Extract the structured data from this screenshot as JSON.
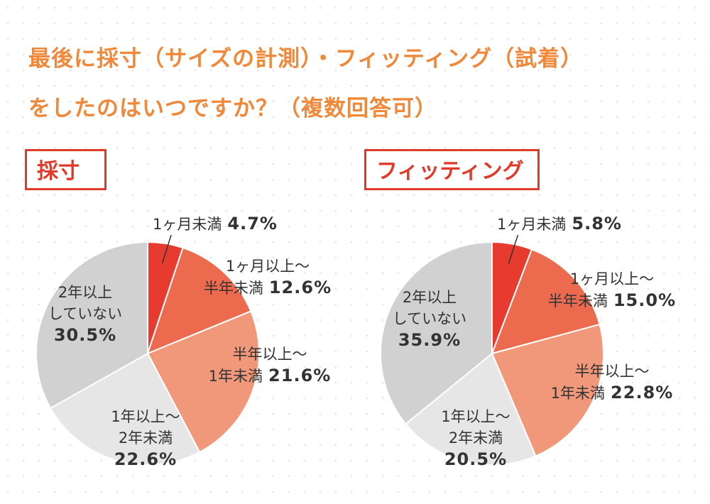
{
  "title": "最後に採寸（サイズの計測）・フィッティング（試着）\nをしたのはいつですか？（複数回答可）",
  "chart_data": [
    {
      "type": "pie",
      "title": "採寸",
      "categories": [
        "1ヶ月未満",
        "1ヶ月以上〜\n半年未満",
        "半年以上〜\n1年未満",
        "1年以上〜\n2年未満",
        "2年以上\nしていない"
      ],
      "values": [
        4.7,
        12.6,
        21.6,
        22.6,
        30.5
      ],
      "value_labels": [
        "4.7%",
        "12.6%",
        "21.6%",
        "22.6%",
        "30.5%"
      ],
      "colors": [
        "#e63b2e",
        "#ec6b4f",
        "#f1987a",
        "#e6e6e6",
        "#d1d1d1"
      ]
    },
    {
      "type": "pie",
      "title": "フィッティング",
      "categories": [
        "1ヶ月未満",
        "1ヶ月以上〜\n半年未満",
        "半年以上〜\n1年未満",
        "1年以上〜\n2年未満",
        "2年以上\nしていない"
      ],
      "values": [
        5.8,
        15.0,
        22.8,
        20.5,
        35.9
      ],
      "value_labels": [
        "5.8%",
        "15.0%",
        "22.8%",
        "20.5%",
        "35.9%"
      ],
      "colors": [
        "#e63b2e",
        "#ec6b4f",
        "#f1987a",
        "#e6e6e6",
        "#d1d1d1"
      ]
    }
  ]
}
